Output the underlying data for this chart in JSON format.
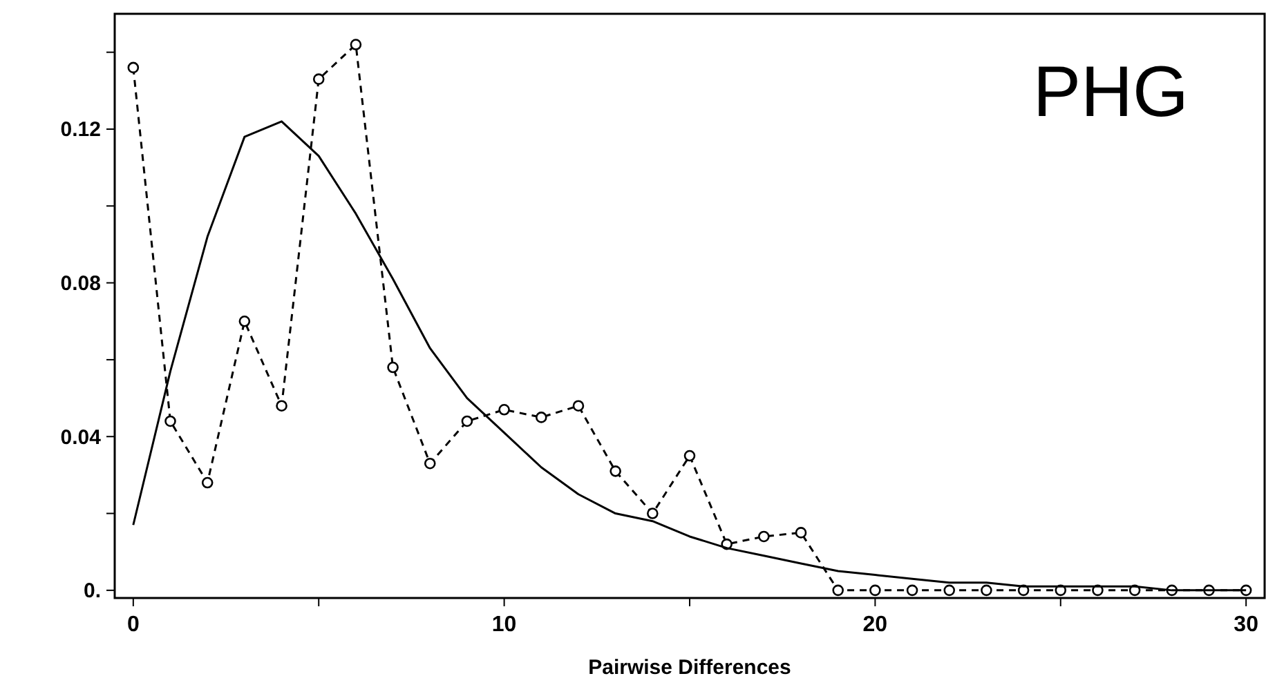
{
  "chart_data": {
    "type": "line",
    "xlabel": "Pairwise Differences",
    "annotations": [
      "PHG"
    ],
    "x": [
      0,
      1,
      2,
      3,
      4,
      5,
      6,
      7,
      8,
      9,
      10,
      11,
      12,
      13,
      14,
      15,
      16,
      17,
      18,
      19,
      20,
      21,
      22,
      23,
      24,
      25,
      26,
      27,
      28,
      29,
      30
    ],
    "xlim": [
      -0.5,
      30.5
    ],
    "xticks": [
      0,
      {
        "value": 5,
        "label": null
      },
      10,
      {
        "value": 15,
        "label": null
      },
      20,
      {
        "value": 25,
        "label": null
      },
      30
    ],
    "ylim": [
      -0.002,
      0.15
    ],
    "yticks": [
      {
        "value": 0,
        "label": "0."
      },
      {
        "value": 0.02,
        "label": null
      },
      {
        "value": 0.04,
        "label": "0.04"
      },
      {
        "value": 0.06,
        "label": null
      },
      {
        "value": 0.08,
        "label": "0.08"
      },
      {
        "value": 0.1,
        "label": null
      },
      {
        "value": 0.12,
        "label": "0.12"
      },
      {
        "value": 0.14,
        "label": null
      }
    ],
    "grid": false,
    "series": [
      {
        "color": "#000000",
        "line_style": "dashed",
        "marker": "circle",
        "values": [
          0.136,
          0.044,
          0.028,
          0.07,
          0.048,
          0.133,
          0.142,
          0.058,
          0.033,
          0.044,
          0.047,
          0.045,
          0.048,
          0.031,
          0.02,
          0.035,
          0.012,
          0.014,
          0.015,
          0,
          0,
          0,
          0,
          0,
          0,
          0,
          0,
          0,
          0,
          0,
          0
        ]
      },
      {
        "color": "#000000",
        "line_style": "solid",
        "marker": "none",
        "values": [
          0.017,
          0.057,
          0.092,
          0.118,
          0.122,
          0.113,
          0.098,
          0.081,
          0.063,
          0.05,
          0.041,
          0.032,
          0.025,
          0.02,
          0.018,
          0.014,
          0.011,
          0.009,
          0.007,
          0.005,
          0.004,
          0.003,
          0.002,
          0.002,
          0.001,
          0.001,
          0.001,
          0.001,
          0,
          0,
          0
        ]
      }
    ]
  }
}
